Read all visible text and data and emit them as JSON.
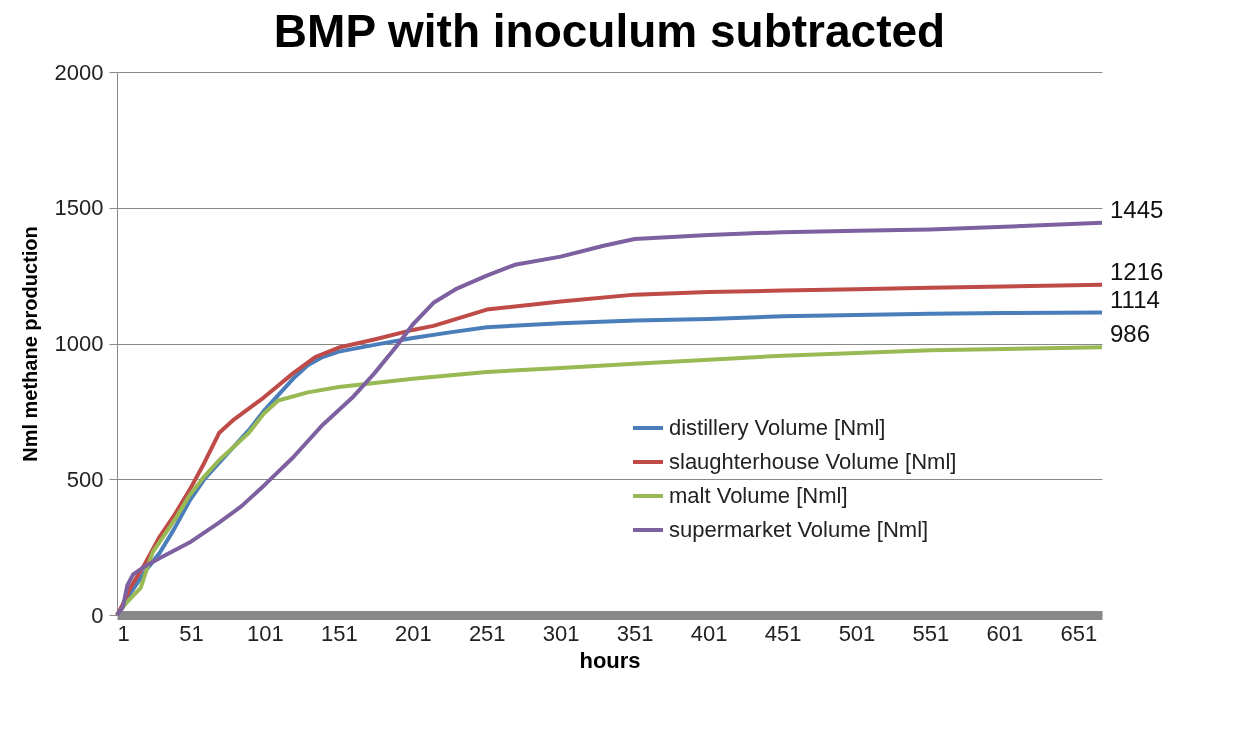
{
  "chart_data": {
    "type": "line",
    "title": "BMP with inoculum subtracted",
    "xlabel": "hours",
    "ylabel": "Nml methane production",
    "xlim": [
      1,
      667
    ],
    "xticks": [
      1,
      51,
      101,
      151,
      201,
      251,
      301,
      351,
      401,
      451,
      501,
      551,
      601,
      651
    ],
    "ylim": [
      0,
      2000
    ],
    "yticks": [
      0,
      500,
      1000,
      1500,
      2000
    ],
    "grid": "y",
    "legend": "bottom right",
    "marker": "none",
    "line_style": "solid",
    "series": [
      {
        "name": "distillery  Volume [Nml]",
        "color": "#4a7ebb",
        "x": [
          1,
          5,
          10,
          20,
          30,
          40,
          50,
          60,
          70,
          80,
          90,
          100,
          110,
          120,
          130,
          140,
          151,
          175,
          201,
          225,
          251,
          301,
          351,
          401,
          451,
          501,
          551,
          601,
          667
        ],
        "values": [
          0,
          30,
          80,
          160,
          230,
          320,
          420,
          500,
          560,
          620,
          680,
          750,
          810,
          870,
          920,
          950,
          970,
          995,
          1020,
          1040,
          1060,
          1075,
          1085,
          1090,
          1100,
          1105,
          1110,
          1112,
          1114
        ],
        "value_labels": [
          null,
          null,
          null,
          null,
          null,
          null,
          null,
          null,
          null,
          null,
          null,
          null,
          null,
          null,
          null,
          null,
          null,
          null,
          null,
          null,
          null,
          null,
          null,
          null,
          null,
          null,
          null,
          null,
          "1114"
        ]
      },
      {
        "name": "slaughterhouse  Volume [Nml]",
        "color": "#be4b48",
        "x": [
          1,
          5,
          10,
          20,
          30,
          40,
          50,
          60,
          70,
          80,
          100,
          120,
          135,
          151,
          175,
          201,
          215,
          230,
          251,
          301,
          351,
          401,
          451,
          501,
          551,
          601,
          667
        ],
        "values": [
          0,
          40,
          100,
          190,
          290,
          370,
          460,
          560,
          670,
          720,
          800,
          890,
          950,
          985,
          1015,
          1050,
          1065,
          1090,
          1125,
          1155,
          1180,
          1190,
          1195,
          1200,
          1205,
          1210,
          1216
        ],
        "value_labels": [
          null,
          null,
          null,
          null,
          null,
          null,
          null,
          null,
          null,
          null,
          null,
          null,
          null,
          null,
          null,
          null,
          null,
          null,
          null,
          null,
          null,
          null,
          null,
          null,
          null,
          null,
          "1216"
        ]
      },
      {
        "name": "malt Volume [Nml]",
        "color": "#98b954",
        "x": [
          1,
          5,
          10,
          17,
          20,
          25,
          30,
          40,
          50,
          60,
          70,
          80,
          90,
          100,
          110,
          130,
          151,
          201,
          251,
          301,
          351,
          401,
          451,
          501,
          551,
          601,
          667
        ],
        "values": [
          0,
          30,
          60,
          100,
          150,
          230,
          270,
          350,
          440,
          510,
          570,
          620,
          670,
          740,
          790,
          820,
          840,
          870,
          895,
          910,
          925,
          940,
          955,
          965,
          975,
          980,
          986
        ],
        "value_labels": [
          null,
          null,
          null,
          null,
          null,
          null,
          null,
          null,
          null,
          null,
          null,
          null,
          null,
          null,
          null,
          null,
          null,
          null,
          null,
          null,
          null,
          null,
          null,
          null,
          null,
          null,
          "986"
        ]
      },
      {
        "name": "supermarket Volume [Nml]",
        "color": "#7d60a0",
        "x": [
          1,
          5,
          8,
          12,
          20,
          30,
          51,
          70,
          85,
          101,
          120,
          140,
          160,
          175,
          190,
          201,
          215,
          230,
          251,
          270,
          301,
          330,
          351,
          401,
          451,
          501,
          551,
          601,
          667
        ],
        "values": [
          0,
          30,
          110,
          150,
          180,
          210,
          270,
          340,
          400,
          480,
          580,
          700,
          800,
          890,
          990,
          1070,
          1150,
          1200,
          1250,
          1290,
          1320,
          1360,
          1385,
          1400,
          1410,
          1415,
          1420,
          1430,
          1445
        ],
        "value_labels": [
          null,
          null,
          null,
          null,
          null,
          null,
          null,
          null,
          null,
          null,
          null,
          null,
          null,
          null,
          null,
          null,
          null,
          null,
          null,
          null,
          null,
          null,
          null,
          null,
          null,
          null,
          null,
          null,
          "1445"
        ]
      }
    ]
  }
}
